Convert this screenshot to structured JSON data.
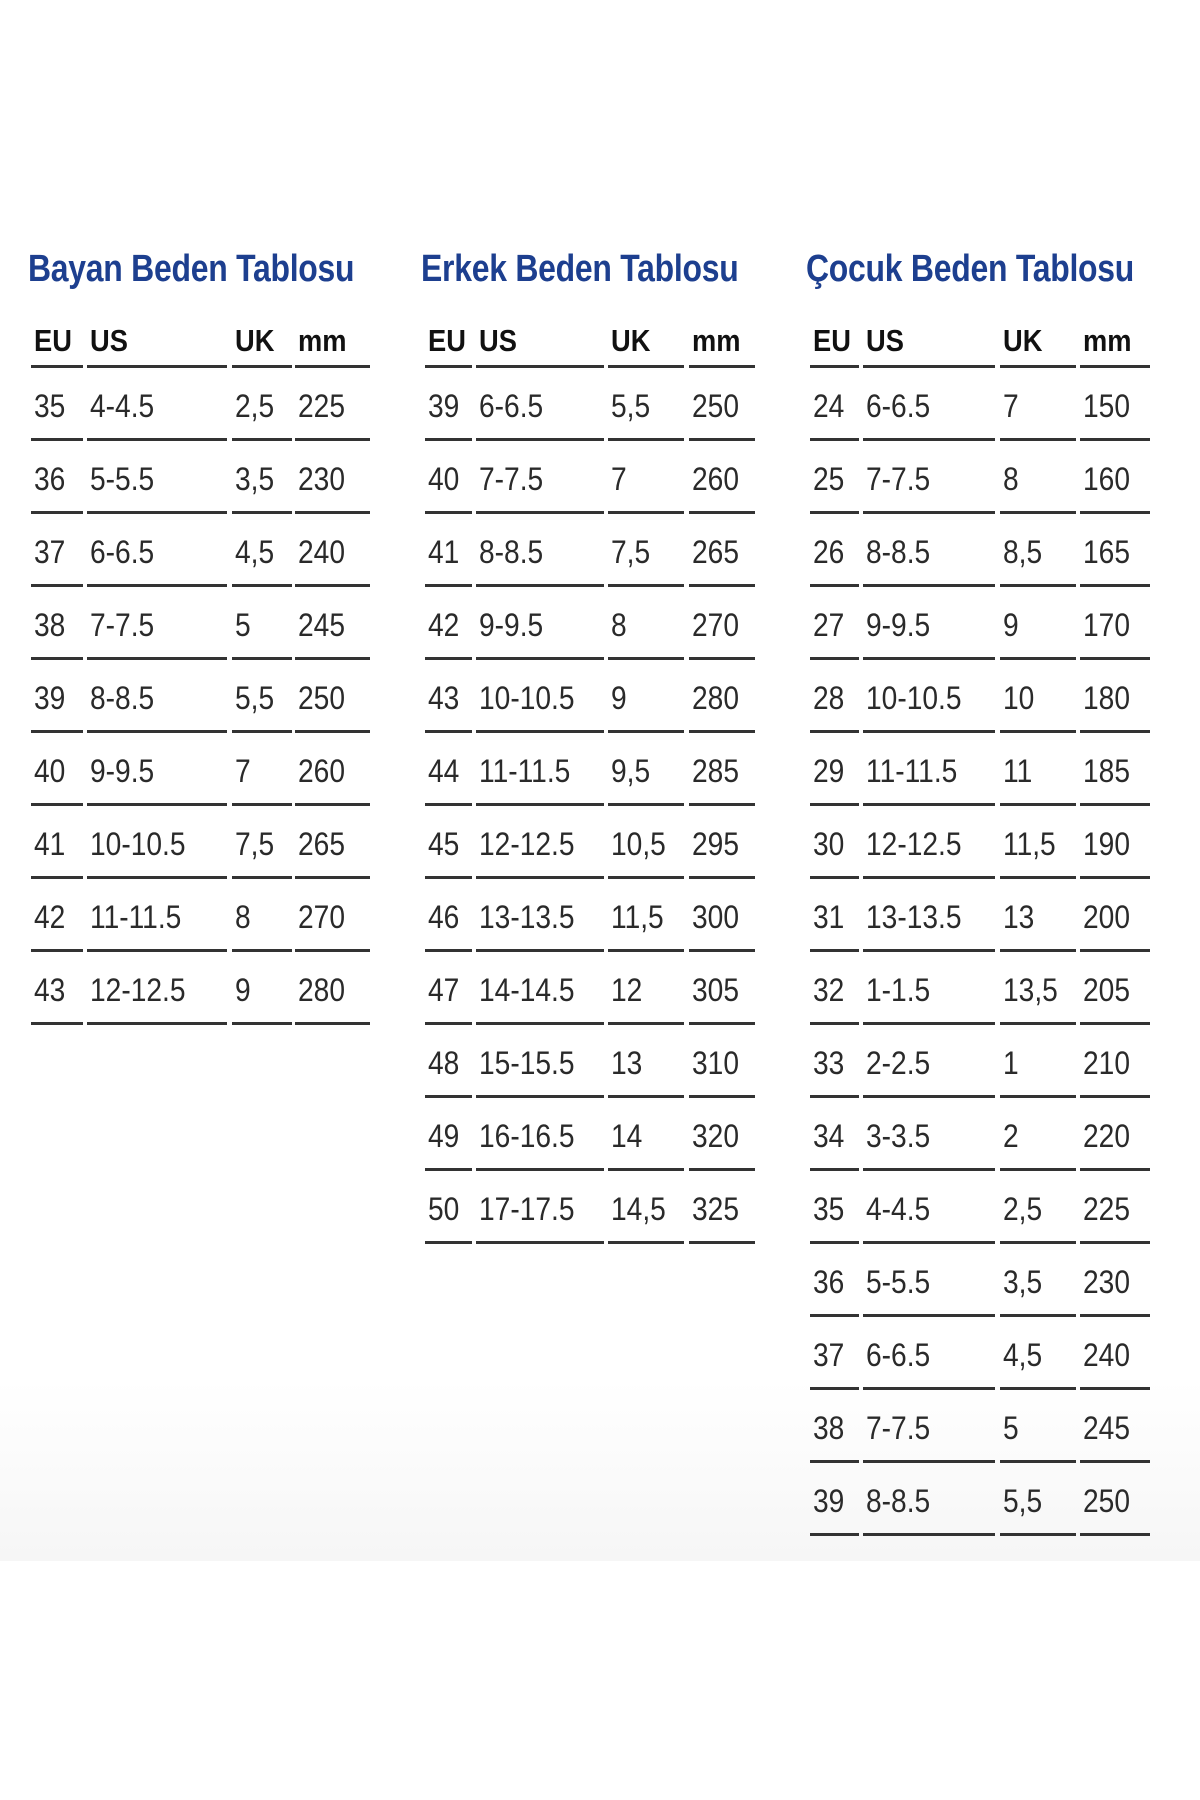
{
  "tables": [
    {
      "title": "Bayan Beden Tablosu",
      "headers": [
        "EU",
        "US",
        "UK",
        "mm"
      ],
      "rows": [
        [
          "35",
          "4-4.5",
          "2,5",
          "225"
        ],
        [
          "36",
          "5-5.5",
          "3,5",
          "230"
        ],
        [
          "37",
          "6-6.5",
          "4,5",
          "240"
        ],
        [
          "38",
          "7-7.5",
          "5",
          "245"
        ],
        [
          "39",
          "8-8.5",
          "5,5",
          "250"
        ],
        [
          "40",
          "9-9.5",
          "7",
          "260"
        ],
        [
          "41",
          "10-10.5",
          "7,5",
          "265"
        ],
        [
          "42",
          "11-11.5",
          "8",
          "270"
        ],
        [
          "43",
          "12-12.5",
          "9",
          "280"
        ]
      ]
    },
    {
      "title": "Erkek Beden Tablosu",
      "headers": [
        "EU",
        "US",
        "UK",
        "mm"
      ],
      "rows": [
        [
          "39",
          "6-6.5",
          "5,5",
          "250"
        ],
        [
          "40",
          "7-7.5",
          "7",
          "260"
        ],
        [
          "41",
          "8-8.5",
          "7,5",
          "265"
        ],
        [
          "42",
          "9-9.5",
          "8",
          "270"
        ],
        [
          "43",
          "10-10.5",
          "9",
          "280"
        ],
        [
          "44",
          "11-11.5",
          "9,5",
          "285"
        ],
        [
          "45",
          "12-12.5",
          "10,5",
          "295"
        ],
        [
          "46",
          "13-13.5",
          "11,5",
          "300"
        ],
        [
          "47",
          "14-14.5",
          "12",
          "305"
        ],
        [
          "48",
          "15-15.5",
          "13",
          "310"
        ],
        [
          "49",
          "16-16.5",
          "14",
          "320"
        ],
        [
          "50",
          "17-17.5",
          "14,5",
          "325"
        ]
      ]
    },
    {
      "title": "Çocuk Beden Tablosu",
      "headers": [
        "EU",
        "US",
        "UK",
        "mm"
      ],
      "rows": [
        [
          "24",
          "6-6.5",
          "7",
          "150"
        ],
        [
          "25",
          "7-7.5",
          "8",
          "160"
        ],
        [
          "26",
          "8-8.5",
          "8,5",
          "165"
        ],
        [
          "27",
          "9-9.5",
          "9",
          "170"
        ],
        [
          "28",
          "10-10.5",
          "10",
          "180"
        ],
        [
          "29",
          "11-11.5",
          "11",
          "185"
        ],
        [
          "30",
          "12-12.5",
          "11,5",
          "190"
        ],
        [
          "31",
          "13-13.5",
          "13",
          "200"
        ],
        [
          "32",
          "1-1.5",
          "13,5",
          "205"
        ],
        [
          "33",
          "2-2.5",
          "1",
          "210"
        ],
        [
          "34",
          "3-3.5",
          "2",
          "220"
        ],
        [
          "35",
          "4-4.5",
          "2,5",
          "225"
        ],
        [
          "36",
          "5-5.5",
          "3,5",
          "230"
        ],
        [
          "37",
          "6-6.5",
          "4,5",
          "240"
        ],
        [
          "38",
          "7-7.5",
          "5",
          "245"
        ],
        [
          "39",
          "8-8.5",
          "5,5",
          "250"
        ]
      ]
    }
  ],
  "colors": {
    "title": "#1d3f8f",
    "text": "#2a2a2a",
    "rule": "#333333"
  }
}
